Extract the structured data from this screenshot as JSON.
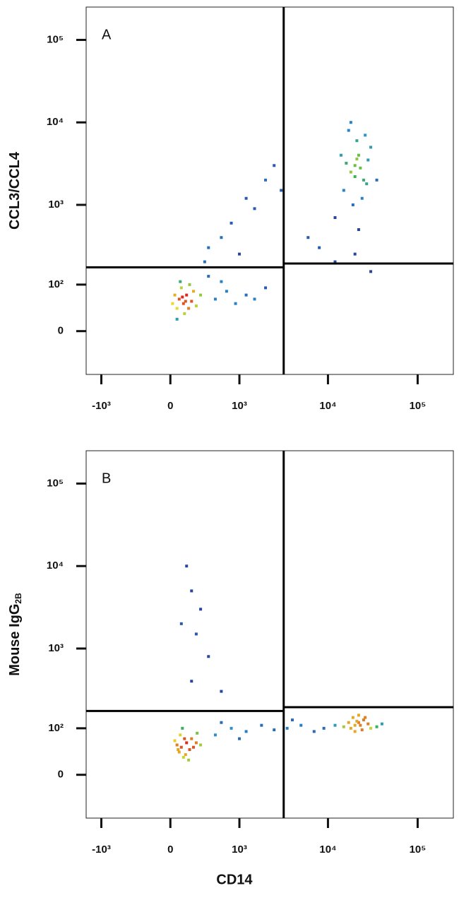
{
  "chart_data": [
    {
      "type": "scatter",
      "panel_label": "A",
      "y_label": "CCL3/CCL4",
      "xscale": "biexponential",
      "yscale": "biexponential",
      "xlim": [
        -1500,
        250000
      ],
      "ylim": [
        -90,
        250000
      ],
      "xticks": [
        {
          "value": -1000,
          "label": "-10³"
        },
        0,
        {
          "value": 1000,
          "label": "10³"
        },
        {
          "value": 10000,
          "label": "10⁴"
        },
        {
          "value": 100000,
          "label": "10⁵"
        }
      ],
      "yticks": [
        0,
        {
          "value": 100,
          "label": "10²"
        },
        {
          "value": 1000,
          "label": "10³"
        },
        {
          "value": 10000,
          "label": "10⁴"
        },
        {
          "value": 100000,
          "label": "10⁵"
        }
      ],
      "gate_x": 3200,
      "gate_y_left": 170,
      "gate_y_right": 190,
      "x": [
        80,
        120,
        150,
        60,
        200,
        100,
        170,
        40,
        130,
        220,
        90,
        250,
        60,
        180,
        110,
        140,
        300,
        20,
        500,
        700,
        900,
        1200,
        600,
        1500,
        400,
        2000,
        400,
        800,
        1200,
        2000,
        600,
        1500,
        3000,
        2500,
        1000,
        350,
        20000,
        18000,
        22000,
        25000,
        15000,
        30000,
        17000,
        21000,
        24000,
        19000,
        28000,
        14000,
        23000,
        20000,
        26000,
        12000,
        35000,
        16000,
        22000,
        18000,
        27000,
        21000,
        8000,
        12000,
        20000,
        6000,
        30000
      ],
      "y": [
        60,
        50,
        70,
        40,
        55,
        90,
        40,
        70,
        30,
        80,
        110,
        45,
        20,
        100,
        65,
        55,
        70,
        50,
        60,
        80,
        50,
        70,
        110,
        60,
        130,
        90,
        300,
        600,
        1200,
        2000,
        400,
        900,
        1500,
        3000,
        250,
        200,
        3000,
        2500,
        4000,
        2000,
        1500,
        5000,
        8000,
        6000,
        1200,
        1000,
        3500,
        4000,
        2800,
        2200,
        7000,
        700,
        2000,
        3200,
        500,
        10000,
        1800,
        3600,
        300,
        200,
        250,
        400,
        150
      ]
    },
    {
      "type": "scatter",
      "panel_label": "B",
      "y_label": "Mouse IgG",
      "y_label_subscript": "2B",
      "x_label": "CD14",
      "xscale": "biexponential",
      "yscale": "biexponential",
      "xlim": [
        -1500,
        250000
      ],
      "ylim": [
        -90,
        250000
      ],
      "xticks": [
        {
          "value": -1000,
          "label": "-10³"
        },
        0,
        {
          "value": 1000,
          "label": "10³"
        },
        {
          "value": 10000,
          "label": "10⁴"
        },
        {
          "value": 100000,
          "label": "10⁵"
        }
      ],
      "yticks": [
        0,
        {
          "value": 100,
          "label": "10²"
        },
        {
          "value": 1000,
          "label": "10³"
        },
        {
          "value": 10000,
          "label": "10⁴"
        },
        {
          "value": 100000,
          "label": "10⁵"
        }
      ],
      "gate_x": 3200,
      "gate_y_left": 170,
      "gate_y_right": 190,
      "x": [
        100,
        150,
        80,
        200,
        120,
        60,
        180,
        250,
        90,
        140,
        40,
        220,
        110,
        170,
        300,
        70,
        130,
        260,
        500,
        800,
        1200,
        1800,
        2500,
        3500,
        5000,
        7000,
        600,
        1000,
        4000,
        9000,
        20000,
        22000,
        18000,
        25000,
        15000,
        28000,
        24000,
        19000,
        21000,
        30000,
        12000,
        23000,
        26000,
        17000,
        35000,
        20000,
        22000,
        40000,
        200,
        150,
        300,
        250,
        400,
        200,
        600,
        100
      ],
      "y": [
        50,
        60,
        40,
        70,
        30,
        55,
        45,
        60,
        80,
        35,
        65,
        50,
        100,
        25,
        55,
        45,
        70,
        85,
        80,
        100,
        90,
        110,
        95,
        100,
        110,
        90,
        120,
        70,
        130,
        100,
        110,
        120,
        100,
        130,
        105,
        115,
        95,
        140,
        125,
        100,
        110,
        110,
        140,
        120,
        105,
        90,
        150,
        115,
        5000,
        10000,
        3000,
        1500,
        800,
        400,
        300,
        2000
      ]
    }
  ]
}
